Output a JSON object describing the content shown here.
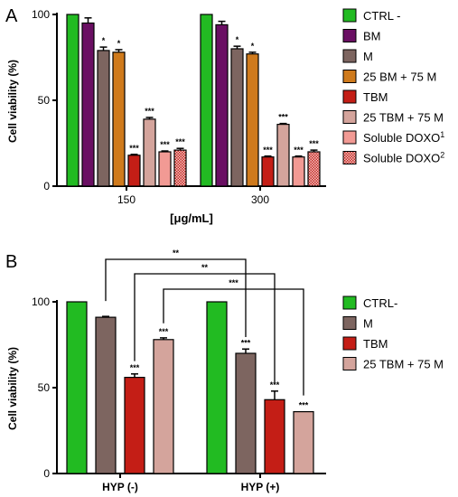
{
  "chart_data": [
    {
      "type": "bar",
      "panel_label": "A",
      "ylabel": "Cell viability (%)",
      "xlabel": "[μg/mL]",
      "ylim": [
        0,
        100
      ],
      "yticks": [
        "0",
        "50",
        "100"
      ],
      "categories": [
        "150",
        "300"
      ],
      "series": [
        {
          "name": "CTRL -",
          "sup": "",
          "color": "#22bb22",
          "pattern": false,
          "values": [
            100,
            100
          ],
          "errors": [
            0,
            0
          ],
          "stars": [
            "",
            ""
          ]
        },
        {
          "name": "BM",
          "sup": "",
          "color": "#6a0f63",
          "pattern": false,
          "values": [
            95,
            94
          ],
          "errors": [
            3,
            2
          ],
          "stars": [
            "",
            ""
          ]
        },
        {
          "name": "M",
          "sup": "",
          "color": "#7d6560",
          "pattern": false,
          "values": [
            79,
            80
          ],
          "errors": [
            2,
            1.5
          ],
          "stars": [
            "*",
            "*"
          ]
        },
        {
          "name": "25 BM + 75 M",
          "sup": "",
          "color": "#cf7a1c",
          "pattern": false,
          "values": [
            78,
            77
          ],
          "errors": [
            1.5,
            1
          ],
          "stars": [
            "*",
            "*"
          ]
        },
        {
          "name": "TBM",
          "sup": "",
          "color": "#c41e16",
          "pattern": false,
          "values": [
            18,
            17
          ],
          "errors": [
            0.5,
            0.5
          ],
          "stars": [
            "***",
            "***"
          ]
        },
        {
          "name": "25 TBM + 75 M",
          "sup": "",
          "color": "#d4a49c",
          "pattern": false,
          "values": [
            39,
            36
          ],
          "errors": [
            1,
            0.5
          ],
          "stars": [
            "***",
            "***"
          ]
        },
        {
          "name": "Soluble DOXO",
          "sup": "1",
          "color": "#f29a94",
          "pattern": false,
          "values": [
            20,
            17
          ],
          "errors": [
            0.5,
            0.5
          ],
          "stars": [
            "***",
            "***"
          ]
        },
        {
          "name": "Soluble DOXO",
          "sup": "2",
          "color": "#c42a25",
          "pattern": true,
          "values": [
            21,
            20
          ],
          "errors": [
            1,
            1
          ],
          "stars": [
            "***",
            "***"
          ]
        }
      ]
    },
    {
      "type": "bar",
      "panel_label": "B",
      "ylabel": "Cell viability (%)",
      "xlabel": "",
      "ylim": [
        0,
        100
      ],
      "yticks": [
        "0",
        "50",
        "100"
      ],
      "categories": [
        "HYP (-)",
        "HYP (+)"
      ],
      "series": [
        {
          "name": "CTRL-",
          "sup": "",
          "color": "#22bb22",
          "pattern": false,
          "values": [
            100,
            100
          ],
          "errors": [
            0,
            0
          ],
          "stars": [
            "",
            ""
          ]
        },
        {
          "name": "M",
          "sup": "",
          "color": "#7d6560",
          "pattern": false,
          "values": [
            91,
            70
          ],
          "errors": [
            0.5,
            2.5
          ],
          "stars": [
            "",
            "***"
          ]
        },
        {
          "name": "TBM",
          "sup": "",
          "color": "#c41e16",
          "pattern": false,
          "values": [
            56,
            43
          ],
          "errors": [
            2,
            5
          ],
          "stars": [
            "***",
            "***"
          ]
        },
        {
          "name": "25 TBM + 75 M",
          "sup": "",
          "color": "#d4a49c",
          "pattern": false,
          "values": [
            78,
            36
          ],
          "errors": [
            1,
            0
          ],
          "stars": [
            "***",
            "***"
          ]
        }
      ],
      "comparisons": [
        {
          "from_series": 1,
          "to_series": 1,
          "label": "**"
        },
        {
          "from_series": 2,
          "to_series": 2,
          "label": "**"
        },
        {
          "from_series": 3,
          "to_series": 3,
          "label": "***"
        }
      ]
    }
  ]
}
